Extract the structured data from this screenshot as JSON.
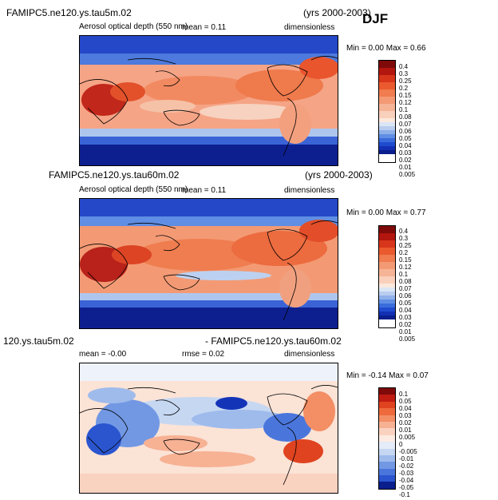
{
  "season": "DJF",
  "panels": [
    {
      "run_title": "FAMIPC5.ne120.ys.tau5m.02",
      "years": "(yrs 2000-2003)",
      "field": "Aerosol optical depth (550 nm)",
      "mean": "mean =     0.11",
      "units": "dimensionless",
      "minmax": "Min =    0.00  Max =    0.66",
      "levels": [
        "0.4",
        "0.3",
        "0.25",
        "0.2",
        "0.15",
        "0.12",
        "0.1",
        "0.08",
        "0.07",
        "0.06",
        "0.05",
        "0.04",
        "0.03",
        "0.02",
        "0.01",
        "0.005"
      ],
      "colors": [
        "#7f0a0a",
        "#b3160e",
        "#d8361a",
        "#ea5a2e",
        "#f07c4f",
        "#f39a74",
        "#f6b497",
        "#f9d0bb",
        "#fbe8dd",
        "#dbe6f5",
        "#b9cdf0",
        "#8fb0ea",
        "#5f8ee4",
        "#3a6cdc",
        "#1f4ccf",
        "#1330b4",
        "#0a1e8c"
      ]
    },
    {
      "run_title": "FAMIPC5.ne120.ys.tau60m.02",
      "years": "(yrs 2000-2003)",
      "field": "Aerosol optical depth (550 nm)",
      "mean": "mean =     0.11",
      "units": "dimensionless",
      "minmax": "Min =    0.00  Max =    0.77",
      "levels": [
        "0.4",
        "0.3",
        "0.25",
        "0.2",
        "0.15",
        "0.12",
        "0.1",
        "0.08",
        "0.07",
        "0.06",
        "0.05",
        "0.04",
        "0.03",
        "0.02",
        "0.01",
        "0.005"
      ],
      "colors": [
        "#7f0a0a",
        "#b3160e",
        "#d8361a",
        "#ea5a2e",
        "#f07c4f",
        "#f39a74",
        "#f6b497",
        "#f9d0bb",
        "#fbe8dd",
        "#dbe6f5",
        "#b9cdf0",
        "#8fb0ea",
        "#5f8ee4",
        "#3a6cdc",
        "#1f4ccf",
        "#1330b4",
        "#0a1e8c"
      ]
    },
    {
      "run_title_left": "120.ys.tau5m.02",
      "run_title_right": "- FAMIPC5.ne120.ys.tau60m.02",
      "mean": "mean =   -0.00",
      "rmse": "rmse =    0.02",
      "units": "dimensionless",
      "minmax": "Min =   -0.14  Max =    0.07",
      "levels": [
        "0.1",
        "0.05",
        "0.04",
        "0.03",
        "0.02",
        "0.01",
        "0.005",
        "0",
        "-0.005",
        "-0.01",
        "-0.02",
        "-0.03",
        "-0.04",
        "-0.05",
        "-0.1"
      ],
      "colors": [
        "#7f0a0a",
        "#c11c12",
        "#e0431f",
        "#ee6a3d",
        "#f38e65",
        "#f7b193",
        "#fad2c0",
        "#fdebe2",
        "#e3ecf8",
        "#c6d7f2",
        "#9fbbec",
        "#7298e4",
        "#4a76dc",
        "#2a55cf",
        "#1434b8",
        "#0a1e8c"
      ]
    }
  ]
}
